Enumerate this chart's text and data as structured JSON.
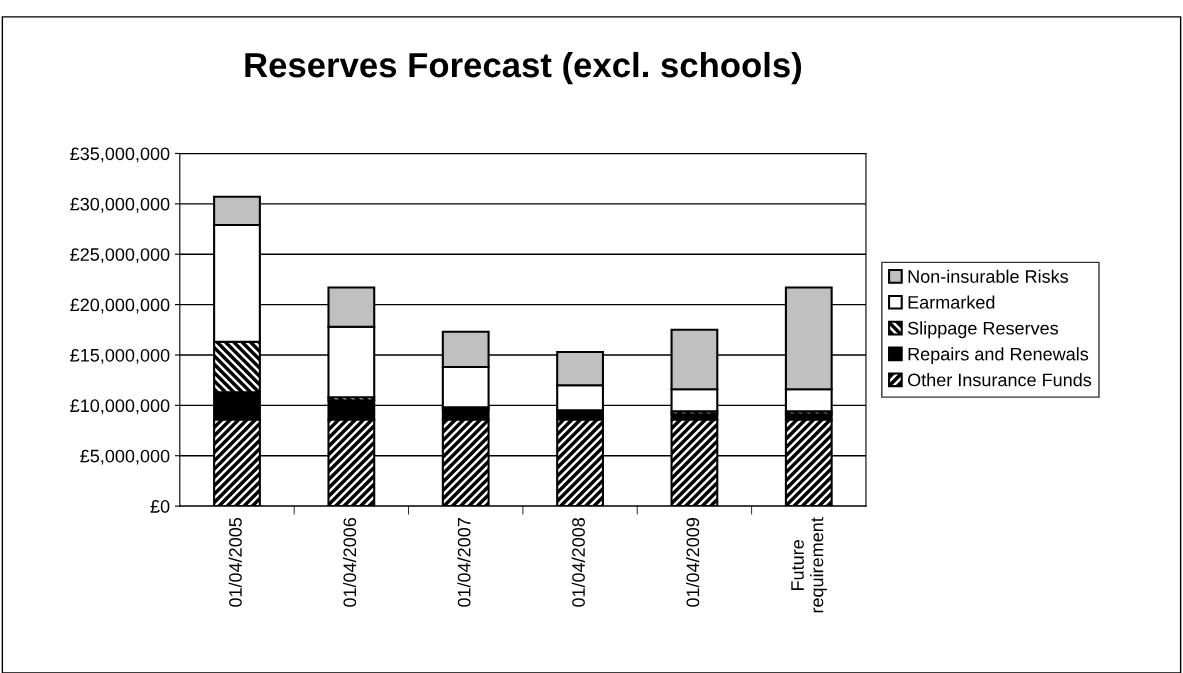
{
  "chart_data": {
    "type": "bar",
    "title": "Reserves Forecast (excl. schools)",
    "categories": [
      "01/04/2005",
      "01/04/2006",
      "01/04/2007",
      "01/04/2008",
      "01/04/2009",
      "Future requirement"
    ],
    "stacked": true,
    "series": [
      {
        "name": "Other Insurance Funds",
        "color": "#000000",
        "values": [
          8600000,
          8600000,
          8600000,
          8600000,
          8600000,
          8600000
        ]
      },
      {
        "name": "Repairs and Renewals",
        "color": "#000000",
        "values": [
          2700000,
          1900000,
          1000000,
          900000,
          500000,
          500000
        ]
      },
      {
        "name": "Slippage Reserves",
        "color": "#000000",
        "values": [
          5000000,
          300000,
          200000,
          0,
          300000,
          300000
        ]
      },
      {
        "name": "Earmarked",
        "color": "#ffffff",
        "values": [
          11600000,
          7000000,
          4000000,
          2500000,
          2200000,
          2200000
        ]
      },
      {
        "name": "Non-insurable Risks",
        "color": "#c0c0c0",
        "values": [
          2800000,
          3900000,
          3500000,
          3300000,
          5900000,
          10100000
        ]
      }
    ],
    "ylim": [
      0,
      35000000
    ],
    "yticks": [
      {
        "value": 0,
        "label": "£0"
      },
      {
        "value": 5000000,
        "label": "£5,000,000"
      },
      {
        "value": 10000000,
        "label": "£10,000,000"
      },
      {
        "value": 15000000,
        "label": "£15,000,000"
      },
      {
        "value": 20000000,
        "label": "£20,000,000"
      },
      {
        "value": 25000000,
        "label": "£25,000,000"
      },
      {
        "value": 30000000,
        "label": "£30,000,000"
      },
      {
        "value": 35000000,
        "label": "£35,000,000"
      }
    ],
    "grid": "y",
    "legend": "right"
  }
}
